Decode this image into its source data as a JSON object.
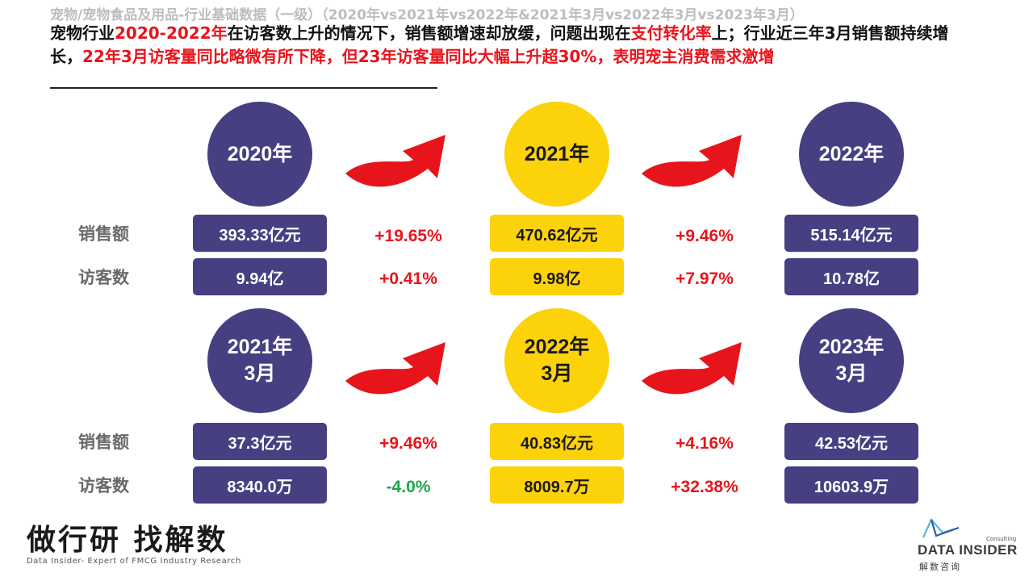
{
  "header": {
    "crumb": "宠物/宠物食品及用品-行业基础数据（一级）（2020年vs2021年vs2022年&2021年3月vs2022年3月vs2023年3月）",
    "headline": {
      "p1": "宠物行业",
      "p2": "2020-2022年",
      "p3": "在访客数上升的情况下，销售额增速却放缓，问题出现在",
      "p4": "支付转化率",
      "p5": "上；行业近三年3月销售额持续增长，",
      "p6": "22年3月访客量同比略微有所下降，但23年访客量同比大幅上升超30%，表明宠主消费需求激增"
    }
  },
  "labels": {
    "sales": "销售额",
    "visitors": "访客数"
  },
  "annual": {
    "years": [
      "2020年",
      "2021年",
      "2022年"
    ],
    "sales": [
      "393.33亿元",
      "470.62亿元",
      "515.14亿元"
    ],
    "visitors": [
      "9.94亿",
      "9.98亿",
      "10.78亿"
    ],
    "sales_growth": [
      "+19.65%",
      "+9.46%"
    ],
    "visitor_growth": [
      "+0.41%",
      "+7.97%"
    ]
  },
  "march": {
    "periods": [
      "2021年\n3月",
      "2022年\n3月",
      "2023年\n3月"
    ],
    "sales": [
      "37.3亿元",
      "40.83亿元",
      "42.53亿元"
    ],
    "visitors": [
      "8340.0万",
      "8009.7万",
      "10603.9万"
    ],
    "sales_growth": [
      "+9.46%",
      "+4.16%"
    ],
    "visitor_growth": [
      "-4.0%",
      "+32.38%"
    ]
  },
  "colors": {
    "purple": "#463f82",
    "yellow": "#fcd20a",
    "red": "#e8141c",
    "green": "#1aa84a"
  },
  "footer": {
    "slogan": "做行研 找解数",
    "slogan_sub": "Data Insider- Expert of FMCG Industry Research",
    "logo_consulting": "Consulting",
    "logo_name": "DATA INSIDER",
    "logo_cn": "解数咨询"
  }
}
